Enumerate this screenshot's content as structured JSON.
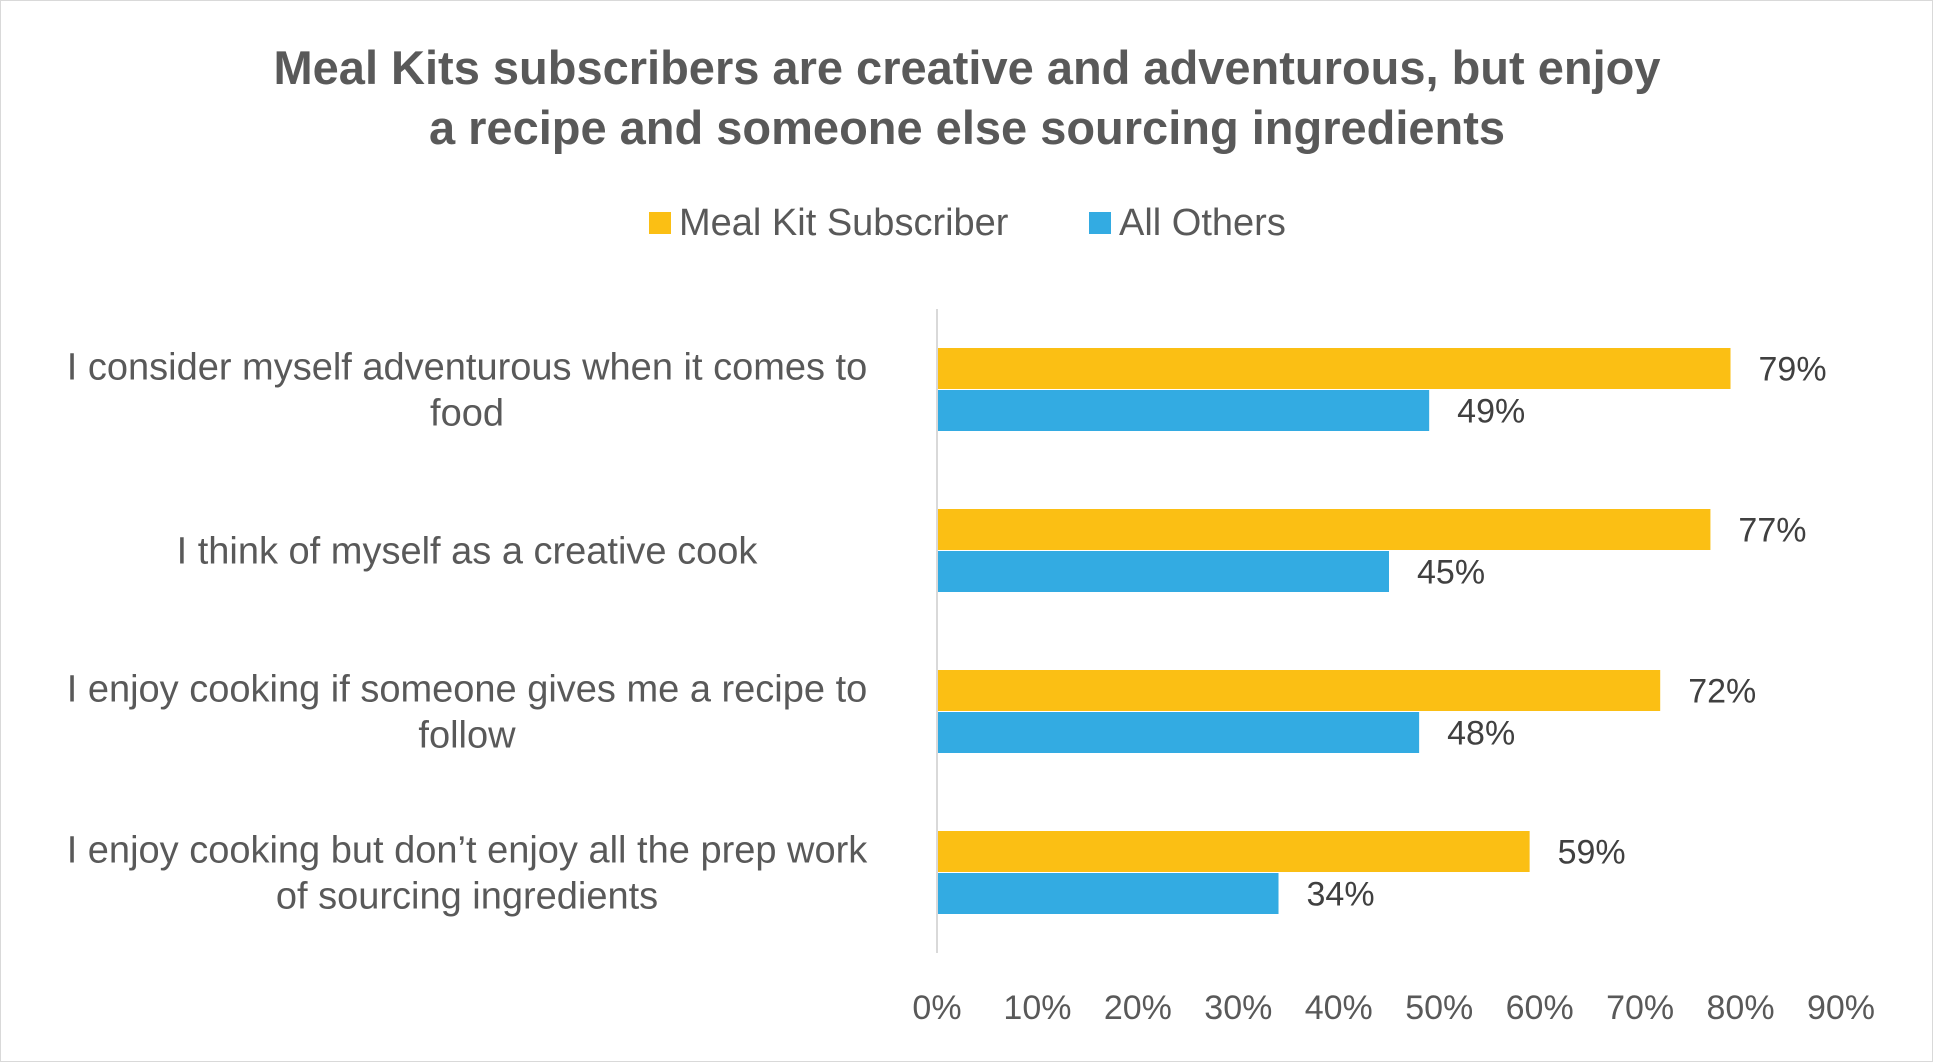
{
  "chart_data": {
    "type": "bar",
    "orientation": "horizontal",
    "title_lines": [
      "Meal Kits subscribers are creative and adventurous, but enjoy",
      "a recipe and someone else sourcing ingredients"
    ],
    "categories": [
      {
        "lines": [
          "I consider myself adventurous when it comes to",
          "food"
        ]
      },
      {
        "lines": [
          "I think of myself as a creative cook"
        ]
      },
      {
        "lines": [
          "I enjoy cooking if someone gives me a recipe to",
          "follow"
        ]
      },
      {
        "lines": [
          "I enjoy cooking but don’t enjoy all the prep work",
          "of sourcing ingredients"
        ]
      }
    ],
    "series": [
      {
        "name": "Meal Kit Subscriber",
        "color": "#fbbf14",
        "values": [
          79,
          77,
          72,
          59
        ],
        "labels": [
          "79%",
          "77%",
          "72%",
          "59%"
        ]
      },
      {
        "name": "All Others",
        "color": "#33abe2",
        "values": [
          49,
          45,
          48,
          34
        ],
        "labels": [
          "49%",
          "45%",
          "48%",
          "34%"
        ]
      }
    ],
    "xlim": [
      0,
      90
    ],
    "x_ticks": [
      0,
      10,
      20,
      30,
      40,
      50,
      60,
      70,
      80,
      90
    ],
    "x_tick_labels": [
      "0%",
      "10%",
      "20%",
      "30%",
      "40%",
      "50%",
      "60%",
      "70%",
      "80%",
      "90%"
    ],
    "legend_position": "top-center",
    "grid": false
  }
}
